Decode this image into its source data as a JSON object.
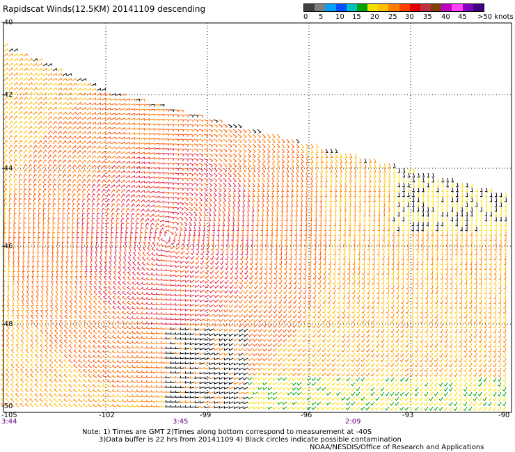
{
  "title": "Rapidscat Winds(12.5KM) 20141109 descending",
  "legend": {
    "colors": [
      "#404040",
      "#808080",
      "#00a0ff",
      "#0050ff",
      "#00c0c0",
      "#00a000",
      "#f0e000",
      "#ffc000",
      "#ff8000",
      "#ff4000",
      "#e00000",
      "#c03040",
      "#804000",
      "#c000c0",
      "#ff40ff",
      "#8000c0",
      "#400080"
    ],
    "labels": [
      "0",
      "5",
      "10",
      "15",
      "20",
      "25",
      "30",
      "35",
      "40",
      "45",
      ">50 knots"
    ]
  },
  "axes": {
    "lat_labels": [
      "-40",
      "-42",
      "-44",
      "-46",
      "-48",
      "-50"
    ],
    "lon_labels": [
      "-105",
      "-102",
      "-99",
      "-96",
      "-93",
      "-90"
    ],
    "time_labels": [
      "3:44",
      "3:45",
      "2:09"
    ]
  },
  "notes": {
    "line1": "Note: 1) Times are GMT 2)Times along bottom correspond to measurement at -40S",
    "line2": "3)Data buffer is 22 hrs from 20141109 4) Black circles indicate possible contamination",
    "credit": "NOAA/NESDIS/Office of Research and Applications"
  }
}
